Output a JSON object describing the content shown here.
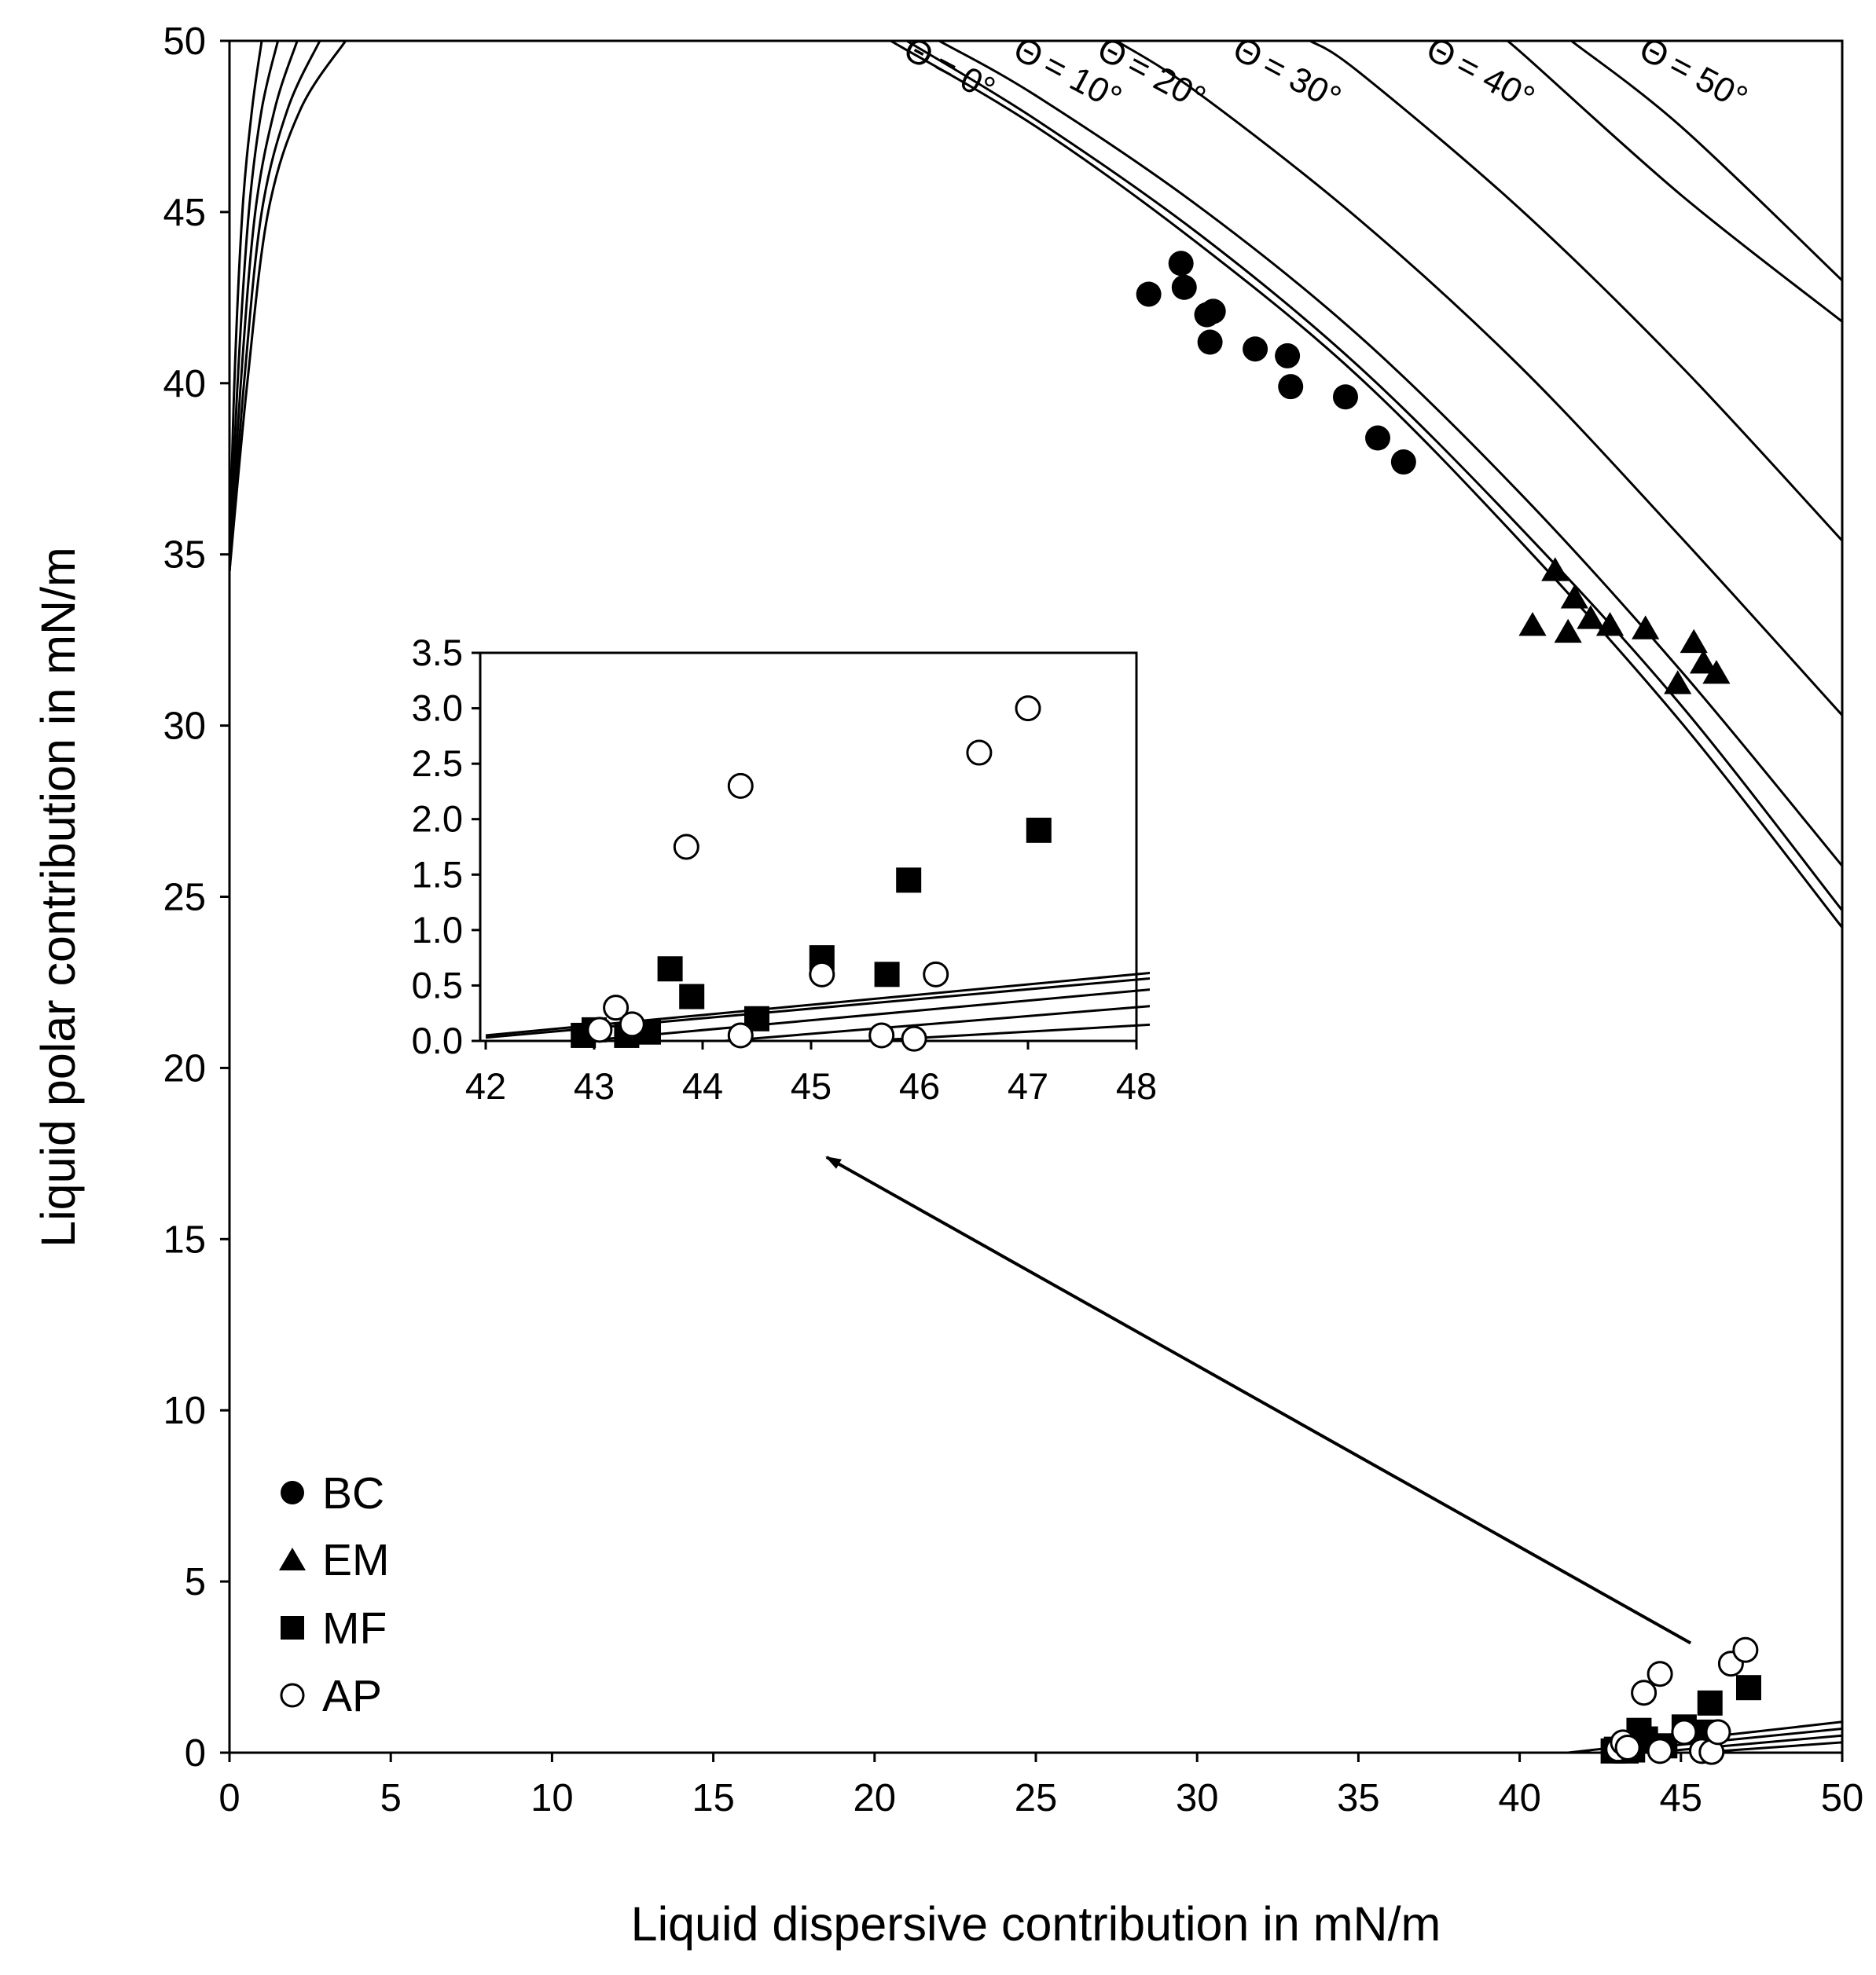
{
  "chart_data": {
    "type": "scatter",
    "xlabel": "Liquid dispersive contribution in mN/m",
    "ylabel": "Liquid polar contribution in mN/m",
    "xlim": [
      0,
      50
    ],
    "ylim": [
      0,
      50
    ],
    "xticks": [
      "0",
      "5",
      "10",
      "15",
      "20",
      "25",
      "30",
      "35",
      "40",
      "45",
      "50"
    ],
    "yticks": [
      "0",
      "5",
      "10",
      "15",
      "20",
      "25",
      "30",
      "35",
      "40",
      "45",
      "50"
    ],
    "legend": {
      "position": "bottom-left",
      "entries": [
        {
          "label": "BC",
          "marker": "filled-circle"
        },
        {
          "label": "EM",
          "marker": "filled-triangle"
        },
        {
          "label": "MF",
          "marker": "filled-square"
        },
        {
          "label": "AP",
          "marker": "open-circle"
        }
      ]
    },
    "contour_labels": [
      {
        "theta": 0,
        "symbol": "Θ",
        "text": "= 0°"
      },
      {
        "theta": 10,
        "symbol": "Θ",
        "text": "= 10°"
      },
      {
        "theta": 20,
        "symbol": "Θ",
        "text": "= 20°"
      },
      {
        "theta": 30,
        "symbol": "Θ",
        "text": "= 30°"
      },
      {
        "theta": 40,
        "symbol": "Θ",
        "text": "= 40°"
      },
      {
        "theta": 50,
        "symbol": "Θ",
        "text": "= 50°"
      }
    ],
    "contours": [
      {
        "theta": 0,
        "points": [
          [
            20.5,
            50
          ],
          [
            25,
            47.5
          ],
          [
            30,
            44.1
          ],
          [
            35,
            40.2
          ],
          [
            40,
            35.4
          ],
          [
            45,
            30.1
          ],
          [
            50,
            24.1
          ]
        ]
      },
      {
        "theta": 5,
        "points": [
          [
            21.0,
            50
          ],
          [
            25,
            47.7
          ],
          [
            30,
            44.4
          ],
          [
            35,
            40.5
          ],
          [
            40,
            35.8
          ],
          [
            45,
            30.6
          ],
          [
            50,
            24.6
          ]
        ]
      },
      {
        "theta": 10,
        "points": [
          [
            22.0,
            50
          ],
          [
            25,
            48.4
          ],
          [
            30,
            45.2
          ],
          [
            35,
            41.4
          ],
          [
            40,
            36.8
          ],
          [
            45,
            31.6
          ],
          [
            50,
            25.9
          ]
        ]
      },
      {
        "theta": 20,
        "points": [
          [
            27.5,
            50
          ],
          [
            30,
            48.5
          ],
          [
            35,
            44.8
          ],
          [
            40,
            40.5
          ],
          [
            45,
            35.5
          ],
          [
            50,
            30.3
          ]
        ]
      },
      {
        "theta": 30,
        "points": [
          [
            33.5,
            50
          ],
          [
            35,
            49.1
          ],
          [
            40,
            45.1
          ],
          [
            45,
            40.5
          ],
          [
            50,
            35.4
          ]
        ]
      },
      {
        "theta": 40,
        "points": [
          [
            39.5,
            50
          ],
          [
            40,
            49.7
          ],
          [
            45,
            45.5
          ],
          [
            50,
            41.8
          ]
        ]
      },
      {
        "theta": 50,
        "points": [
          [
            50,
            50
          ]
        ]
      }
    ],
    "contours_50": {
      "points": [
        [
          41.6,
          50
        ],
        [
          45,
          47.5
        ],
        [
          50,
          43.0
        ]
      ]
    },
    "left_curves": [
      {
        "points": [
          [
            0,
            34.5
          ],
          [
            0.15,
            40
          ],
          [
            0.4,
            45
          ],
          [
            0.7,
            48
          ],
          [
            1.0,
            50
          ]
        ]
      },
      {
        "points": [
          [
            0,
            34.5
          ],
          [
            0.25,
            40
          ],
          [
            0.6,
            45
          ],
          [
            1.0,
            48
          ],
          [
            1.5,
            50
          ]
        ]
      },
      {
        "points": [
          [
            0,
            34.5
          ],
          [
            0.35,
            40
          ],
          [
            0.8,
            45
          ],
          [
            1.4,
            48
          ],
          [
            2.1,
            50
          ]
        ]
      },
      {
        "points": [
          [
            0,
            34.5
          ],
          [
            0.45,
            40
          ],
          [
            1.0,
            45
          ],
          [
            1.8,
            48
          ],
          [
            2.8,
            50
          ]
        ]
      },
      {
        "points": [
          [
            0,
            34.5
          ],
          [
            0.55,
            40
          ],
          [
            1.2,
            45
          ],
          [
            2.2,
            48
          ],
          [
            3.6,
            50
          ]
        ]
      }
    ],
    "bottom_lines": [
      {
        "points": [
          [
            41.5,
            0
          ],
          [
            50,
            0.9
          ]
        ]
      },
      {
        "points": [
          [
            42.5,
            0
          ],
          [
            50,
            0.7
          ]
        ]
      },
      {
        "points": [
          [
            44.0,
            0
          ],
          [
            50,
            0.5
          ]
        ]
      },
      {
        "points": [
          [
            45.5,
            0
          ],
          [
            50,
            0.3
          ]
        ]
      }
    ],
    "series": [
      {
        "name": "BC",
        "marker": "filled-circle",
        "points": [
          [
            28.5,
            42.6
          ],
          [
            29.5,
            43.5
          ],
          [
            29.6,
            42.8
          ],
          [
            30.3,
            42.0
          ],
          [
            30.5,
            42.1
          ],
          [
            30.4,
            41.2
          ],
          [
            31.8,
            41.0
          ],
          [
            32.8,
            40.8
          ],
          [
            32.9,
            39.9
          ],
          [
            34.6,
            39.6
          ],
          [
            35.6,
            38.4
          ],
          [
            36.4,
            37.7
          ]
        ]
      },
      {
        "name": "EM",
        "marker": "filled-triangle",
        "points": [
          [
            41.1,
            34.5
          ],
          [
            41.7,
            33.7
          ],
          [
            40.4,
            32.9
          ],
          [
            41.5,
            32.7
          ],
          [
            42.2,
            33.1
          ],
          [
            42.8,
            32.9
          ],
          [
            43.9,
            32.8
          ],
          [
            45.4,
            32.4
          ],
          [
            45.7,
            31.8
          ],
          [
            46.1,
            31.5
          ],
          [
            44.9,
            31.2
          ]
        ]
      },
      {
        "name": "MF",
        "marker": "filled-square",
        "points": [
          [
            42.9,
            0.05
          ],
          [
            43.0,
            0.1
          ],
          [
            43.3,
            0.05
          ],
          [
            43.5,
            0.08
          ],
          [
            43.7,
            0.65
          ],
          [
            43.9,
            0.4
          ],
          [
            44.5,
            0.2
          ],
          [
            45.1,
            0.75
          ],
          [
            45.7,
            0.6
          ],
          [
            45.9,
            1.45
          ],
          [
            47.1,
            1.9
          ]
        ]
      },
      {
        "name": "AP",
        "marker": "open-circle",
        "points": [
          [
            43.05,
            0.1
          ],
          [
            43.2,
            0.3
          ],
          [
            43.35,
            0.15
          ],
          [
            43.85,
            1.75
          ],
          [
            44.35,
            2.3
          ],
          [
            44.35,
            0.05
          ],
          [
            45.1,
            0.6
          ],
          [
            45.65,
            0.05
          ],
          [
            45.95,
            0.02
          ],
          [
            46.15,
            0.6
          ],
          [
            46.55,
            2.6
          ],
          [
            47.0,
            3.0
          ]
        ]
      }
    ],
    "inset": {
      "xlim": [
        42,
        48
      ],
      "ylim": [
        0,
        3.5
      ],
      "xticks": [
        "42",
        "43",
        "44",
        "45",
        "46",
        "47",
        "48"
      ],
      "yticks": [
        "0.0",
        "0.5",
        "1.0",
        "1.5",
        "2.0",
        "2.5",
        "3.0",
        "3.5"
      ],
      "arrow_from": [
        45.3,
        3.2
      ],
      "lines": [
        {
          "points": [
            [
              42,
              0.05
            ],
            [
              48.2,
              0.62
            ]
          ]
        },
        {
          "points": [
            [
              42,
              0.03
            ],
            [
              48.2,
              0.57
            ]
          ]
        },
        {
          "points": [
            [
              42.9,
              0
            ],
            [
              48.2,
              0.47
            ]
          ]
        },
        {
          "points": [
            [
              44.2,
              0
            ],
            [
              48.2,
              0.32
            ]
          ]
        },
        {
          "points": [
            [
              45.5,
              0
            ],
            [
              48.2,
              0.15
            ]
          ]
        }
      ]
    }
  }
}
